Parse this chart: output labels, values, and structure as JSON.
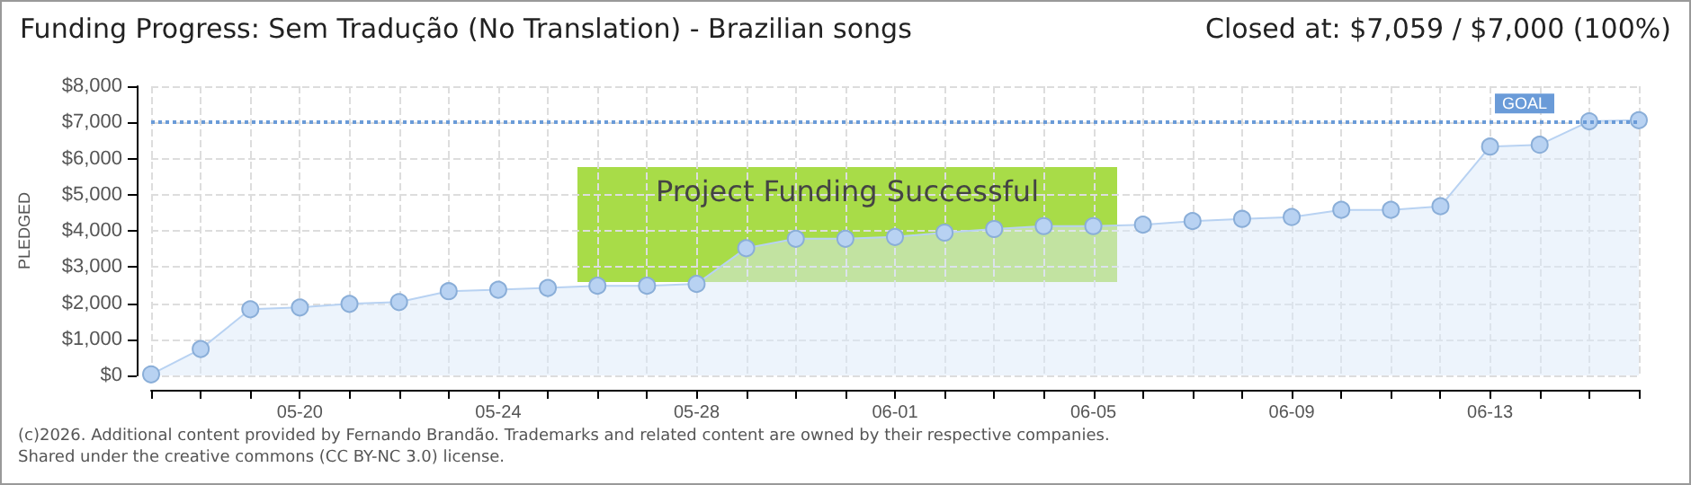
{
  "chart_data": {
    "type": "area",
    "title": "Funding Progress: Sem Tradução (No Translation) - Brazilian songs",
    "subtitle": "Closed at: $7,059 / $7,000 (100%)",
    "ylabel": "PLEDGED",
    "annotations": [
      "Project Funding Successful",
      "(c)2026. Additional content provided by Fernando Brandão. Trademarks and related content are owned by their respective companies.",
      "Shared under the creative commons (CC BY-NC 3.0) license."
    ],
    "x": [
      "--05-17",
      "--05-18",
      "--05-19",
      "--05-20",
      "--05-21",
      "--05-22",
      "--05-23",
      "--05-24",
      "--05-25",
      "--05-26",
      "--05-27",
      "--05-28",
      "--05-29",
      "--05-30",
      "--05-31",
      "--06-01",
      "--06-02",
      "--06-03",
      "--06-04",
      "--06-05",
      "--06-06",
      "--06-07",
      "--06-08",
      "--06-09",
      "--06-10",
      "--06-11",
      "--06-12",
      "--06-13",
      "--06-14",
      "--06-15",
      "--06-16"
    ],
    "series": [
      {
        "color": "#b8d2f2",
        "values": [
          30,
          730,
          1830,
          1880,
          1980,
          2030,
          2330,
          2370,
          2420,
          2480,
          2480,
          2530,
          3520,
          3780,
          3780,
          3830,
          3950,
          4050,
          4130,
          4130,
          4170,
          4270,
          4330,
          4380,
          4580,
          4580,
          4680,
          6330,
          6380,
          7030,
          7060
        ]
      }
    ],
    "xlim": [
      "--05-17",
      "--06-16"
    ],
    "xticks": [
      {
        "value": "--05-17",
        "label": null
      },
      {
        "value": "--05-18",
        "label": null
      },
      {
        "value": "--05-19",
        "label": null
      },
      {
        "value": "--05-20",
        "label": "05-20"
      },
      {
        "value": "--05-21",
        "label": null
      },
      {
        "value": "--05-22",
        "label": null
      },
      {
        "value": "--05-23",
        "label": null
      },
      {
        "value": "--05-24",
        "label": "05-24"
      },
      {
        "value": "--05-25",
        "label": null
      },
      {
        "value": "--05-26",
        "label": null
      },
      {
        "value": "--05-27",
        "label": null
      },
      {
        "value": "--05-28",
        "label": "05-28"
      },
      {
        "value": "--05-29",
        "label": null
      },
      {
        "value": "--05-30",
        "label": null
      },
      {
        "value": "--05-31",
        "label": null
      },
      {
        "value": "--06-01",
        "label": "06-01"
      },
      {
        "value": "--06-02",
        "label": null
      },
      {
        "value": "--06-03",
        "label": null
      },
      {
        "value": "--06-04",
        "label": null
      },
      {
        "value": "--06-05",
        "label": "06-05"
      },
      {
        "value": "--06-06",
        "label": null
      },
      {
        "value": "--06-07",
        "label": null
      },
      {
        "value": "--06-08",
        "label": null
      },
      {
        "value": "--06-09",
        "label": "06-09"
      },
      {
        "value": "--06-10",
        "label": null
      },
      {
        "value": "--06-11",
        "label": null
      },
      {
        "value": "--06-12",
        "label": null
      },
      {
        "value": "--06-13",
        "label": "06-13"
      },
      {
        "value": "--06-14",
        "label": null
      },
      {
        "value": "--06-15",
        "label": null
      },
      {
        "value": "--06-16",
        "label": null
      }
    ],
    "ylim": [
      0,
      8000
    ],
    "yticks": [
      {
        "value": 0,
        "label": "$0"
      },
      {
        "value": 1000,
        "label": "$1,000"
      },
      {
        "value": 2000,
        "label": "$2,000"
      },
      {
        "value": 3000,
        "label": "$3,000"
      },
      {
        "value": 4000,
        "label": "$4,000"
      },
      {
        "value": 5000,
        "label": "$5,000"
      },
      {
        "value": 6000,
        "label": "$6,000"
      },
      {
        "value": 7000,
        "label": "$7,000"
      },
      {
        "value": 8000,
        "label": "$8,000"
      }
    ],
    "ref_lines": [
      {
        "axis": "y",
        "value": 7000,
        "label": "GOAL",
        "color": "#6a9bd8",
        "line_style": "dotted"
      }
    ],
    "grid": true,
    "marker": "circle",
    "line_style": "solid"
  }
}
